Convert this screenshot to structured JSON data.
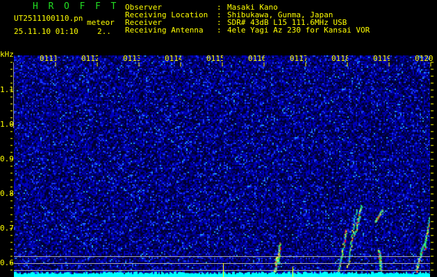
{
  "header": {
    "app_title": "HROFFT",
    "filename": "UT2511100110.pn",
    "mode": "meteor",
    "datetime": "25.11.10 01:10",
    "count": "2..",
    "info": [
      {
        "label": "Observer",
        "value": "Masaki Kano"
      },
      {
        "label": "Receiving Location",
        "value": "Shibukawa, Gunma, Japan"
      },
      {
        "label": "Receiver",
        "value": "SDR# 43dB L15 111.6MHz USB"
      },
      {
        "label": "Receiving Antenna",
        "value": "4ele Yagi Az 230 for Kansai VOR"
      }
    ],
    "separator": ":"
  },
  "spectrogram": {
    "y_unit": "kHz",
    "y_ticks": [
      "1.1",
      "1.0",
      "0.9",
      "0.8",
      "0.7",
      "0.6"
    ],
    "time_labels": [
      "0111",
      "0112",
      "0113",
      "0114",
      "0115",
      "0116",
      "0117",
      "0118",
      "0119",
      "0120"
    ],
    "colors": {
      "background_noise": "#0000aa",
      "baseline": "#00ffff",
      "marker": "#ffff00",
      "reference_lines": "#aaaaaa",
      "label": "#ffff00",
      "title": "#22dd22"
    }
  }
}
